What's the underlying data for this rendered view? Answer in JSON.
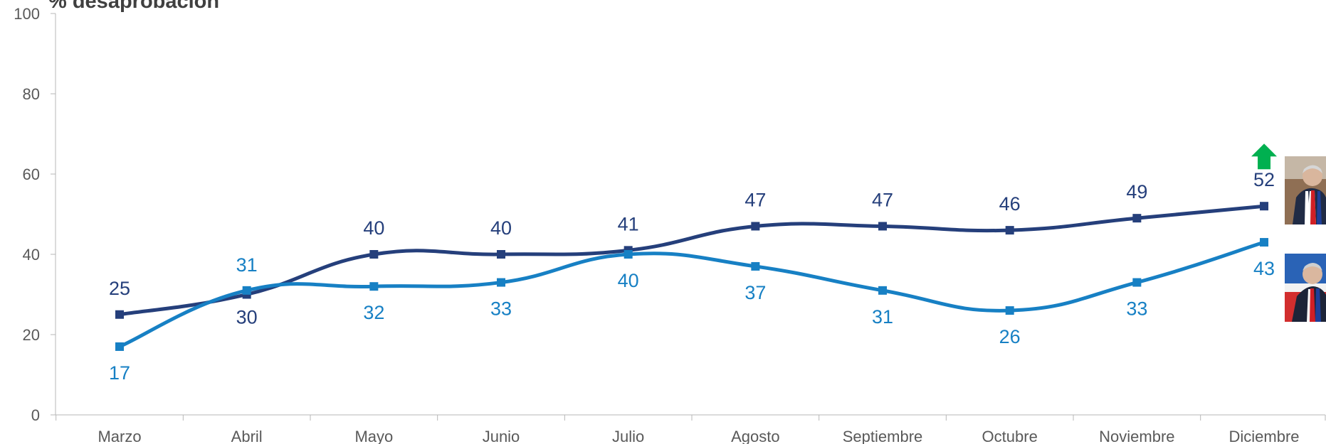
{
  "title": "% desaprobación",
  "chart_data": {
    "type": "line",
    "categories": [
      "Marzo",
      "Abril",
      "Mayo",
      "Junio",
      "Julio",
      "Agosto",
      "Septiembre",
      "Octubre",
      "Noviembre",
      "Diciembre"
    ],
    "series": [
      {
        "values": [
          25,
          30,
          40,
          40,
          41,
          47,
          47,
          46,
          49,
          52
        ],
        "color": "#253f7b",
        "label_position": "above"
      },
      {
        "values": [
          17,
          31,
          32,
          33,
          40,
          37,
          31,
          26,
          33,
          43
        ],
        "color": "#1780c4",
        "label_position": "mixed"
      }
    ],
    "ylim": [
      0,
      100
    ],
    "yticks": [
      0,
      20,
      40,
      60,
      80,
      100
    ],
    "grid": false,
    "legend": "photos at right end of lines",
    "annotation": {
      "icon": "up-arrow-icon",
      "color": "#00b050",
      "target": "Diciembre top series"
    }
  }
}
